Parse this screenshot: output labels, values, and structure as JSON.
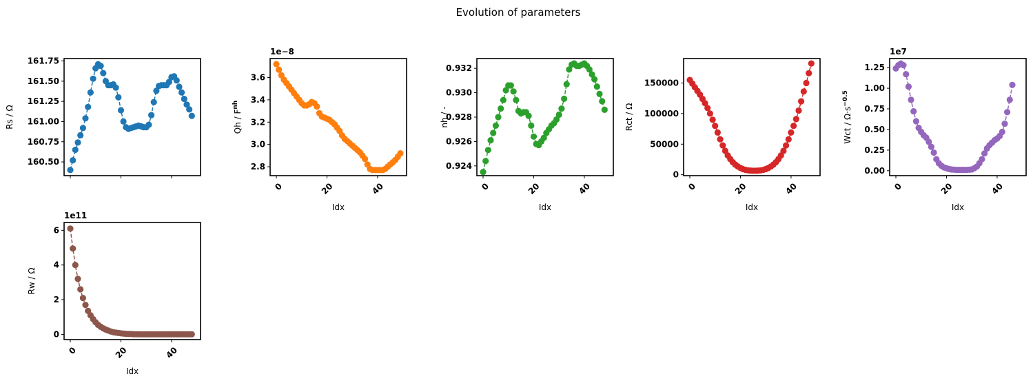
{
  "figure": {
    "title": "Evolution of parameters"
  },
  "chart_data": [
    {
      "type": "line",
      "marker": "circle",
      "line_style": "dashed",
      "color": "#1f77b4",
      "xlabel": "",
      "ylabel": "Rs / Ω",
      "xlim": [
        -2.45,
        51.45
      ],
      "ylim": [
        160.33,
        161.78
      ],
      "xticks": [
        0,
        20,
        40
      ],
      "xtick_labels": [
        "",
        "",
        ""
      ],
      "yticks": [
        160.5,
        160.75,
        161.0,
        161.25,
        161.5,
        161.75
      ],
      "ytick_labels": [
        "160.50",
        "160.75",
        "161.00",
        "161.25",
        "161.50",
        "161.75"
      ],
      "offset_text": "",
      "series": [
        {
          "values": [
            160.4,
            160.52,
            160.65,
            160.74,
            160.83,
            160.92,
            161.04,
            161.18,
            161.36,
            161.53,
            161.66,
            161.71,
            161.69,
            161.6,
            161.5,
            161.45,
            161.45,
            161.46,
            161.42,
            161.3,
            161.14,
            161.0,
            160.93,
            160.91,
            160.92,
            160.93,
            160.94,
            160.95,
            160.94,
            160.93,
            160.93,
            160.96,
            161.08,
            161.24,
            161.38,
            161.44,
            161.45,
            161.45,
            161.45,
            161.49,
            161.55,
            161.56,
            161.51,
            161.43,
            161.36,
            161.28,
            161.21,
            161.15,
            161.07
          ]
        }
      ]
    },
    {
      "type": "line",
      "marker": "circle",
      "line_style": "dashed",
      "color": "#ff7f0e",
      "xlabel": "Idx",
      "ylabel": "Qh / F^nh",
      "xlim": [
        -2.45,
        51.45
      ],
      "ylim": [
        2.72,
        3.77
      ],
      "xticks": [
        0,
        20,
        40
      ],
      "xtick_labels": [
        "0",
        "20",
        "40"
      ],
      "yticks": [
        2.8,
        3.0,
        3.2,
        3.4,
        3.6
      ],
      "ytick_labels": [
        "2.8",
        "3.0",
        "3.2",
        "3.4",
        "3.6"
      ],
      "offset_text": "1e−8",
      "series": [
        {
          "values": [
            3.72,
            3.67,
            3.62,
            3.58,
            3.55,
            3.52,
            3.49,
            3.46,
            3.43,
            3.4,
            3.37,
            3.35,
            3.35,
            3.36,
            3.38,
            3.37,
            3.34,
            3.28,
            3.25,
            3.24,
            3.23,
            3.22,
            3.2,
            3.18,
            3.15,
            3.12,
            3.08,
            3.05,
            3.03,
            3.01,
            2.99,
            2.97,
            2.95,
            2.93,
            2.9,
            2.87,
            2.82,
            2.78,
            2.77,
            2.77,
            2.77,
            2.77,
            2.77,
            2.78,
            2.8,
            2.82,
            2.84,
            2.86,
            2.89,
            2.92
          ]
        }
      ]
    },
    {
      "type": "line",
      "marker": "circle",
      "line_style": "dashed",
      "color": "#2ca02c",
      "xlabel": "Idx",
      "ylabel": "nh / -",
      "xlim": [
        -2.45,
        51.45
      ],
      "ylim": [
        0.9232,
        0.9328
      ],
      "xticks": [
        0,
        20,
        40
      ],
      "xtick_labels": [
        "0",
        "20",
        "40"
      ],
      "yticks": [
        0.924,
        0.926,
        0.928,
        0.93,
        0.932
      ],
      "ytick_labels": [
        "0.924",
        "0.926",
        "0.928",
        "0.930",
        "0.932"
      ],
      "offset_text": "",
      "series": [
        {
          "values": [
            0.9235,
            0.9244,
            0.9253,
            0.9261,
            0.9267,
            0.9273,
            0.928,
            0.9287,
            0.9294,
            0.9302,
            0.9306,
            0.9306,
            0.9301,
            0.9294,
            0.9285,
            0.9283,
            0.9284,
            0.9284,
            0.9281,
            0.9273,
            0.9264,
            0.9258,
            0.9257,
            0.926,
            0.9263,
            0.9267,
            0.927,
            0.9273,
            0.9275,
            0.9278,
            0.9282,
            0.9287,
            0.9295,
            0.9307,
            0.9319,
            0.9323,
            0.9324,
            0.9322,
            0.9322,
            0.9323,
            0.9324,
            0.9322,
            0.9319,
            0.9315,
            0.9311,
            0.9305,
            0.9299,
            0.9293,
            0.9286
          ]
        }
      ]
    },
    {
      "type": "line",
      "marker": "circle",
      "line_style": "dashed",
      "color": "#d62728",
      "xlabel": "Idx",
      "ylabel": "Rct / Ω",
      "xlim": [
        -2.45,
        51.45
      ],
      "ylim": [
        -1500,
        190000
      ],
      "xticks": [
        0,
        20,
        40
      ],
      "xtick_labels": [
        "0",
        "20",
        "40"
      ],
      "yticks": [
        0,
        50000,
        100000,
        150000
      ],
      "ytick_labels": [
        "0",
        "50000",
        "100000",
        "150000"
      ],
      "offset_text": "",
      "series": [
        {
          "values": [
            155000,
            149000,
            143000,
            137000,
            131000,
            124000,
            117000,
            109000,
            100000,
            90000,
            80000,
            69000,
            58000,
            48000,
            39000,
            31500,
            25500,
            20500,
            16500,
            13500,
            11000,
            9200,
            8000,
            7200,
            6800,
            6600,
            6600,
            6800,
            7200,
            8000,
            9200,
            11000,
            13500,
            16500,
            20500,
            25500,
            31500,
            39000,
            48000,
            58000,
            69000,
            80000,
            91000,
            105000,
            120000,
            136000,
            150000,
            166000,
            182000
          ]
        }
      ]
    },
    {
      "type": "line",
      "marker": "circle",
      "line_style": "dashed",
      "color": "#9467bd",
      "xlabel": "Idx",
      "ylabel": "Wct / Ω·s^−0.5",
      "xlim": [
        -2.45,
        51.45
      ],
      "ylim": [
        -0.06,
        1.36
      ],
      "xticks": [
        0,
        20,
        40
      ],
      "xtick_labels": [
        "0",
        "20",
        "40"
      ],
      "yticks": [
        0,
        0.25,
        0.5,
        0.75,
        1.0,
        1.25
      ],
      "ytick_labels": [
        "0.00",
        "0.25",
        "0.50",
        "0.75",
        "1.00",
        "1.25"
      ],
      "offset_text": "1e7",
      "series": [
        {
          "values": [
            1.24,
            1.28,
            1.3,
            1.28,
            1.17,
            1.02,
            0.86,
            0.72,
            0.6,
            0.52,
            0.47,
            0.43,
            0.4,
            0.35,
            0.29,
            0.22,
            0.14,
            0.09,
            0.06,
            0.04,
            0.03,
            0.02,
            0.015,
            0.012,
            0.01,
            0.01,
            0.01,
            0.01,
            0.01,
            0.012,
            0.015,
            0.03,
            0.05,
            0.09,
            0.14,
            0.21,
            0.27,
            0.31,
            0.34,
            0.37,
            0.39,
            0.42,
            0.47,
            0.57,
            0.71,
            0.86,
            1.04
          ]
        }
      ]
    },
    {
      "type": "line",
      "marker": "circle",
      "line_style": "dashed",
      "color": "#8c564b",
      "xlabel": "Idx",
      "ylabel": "Rw / Ω",
      "xlim": [
        -2.45,
        51.45
      ],
      "ylim": [
        -0.3,
        6.45
      ],
      "xticks": [
        0,
        20,
        40
      ],
      "xtick_labels": [
        "0",
        "20",
        "40"
      ],
      "yticks": [
        0,
        2,
        4,
        6
      ],
      "ytick_labels": [
        "0",
        "2",
        "4",
        "6"
      ],
      "offset_text": "1e11",
      "series": [
        {
          "values": [
            6.1,
            4.95,
            4.0,
            3.2,
            2.6,
            2.1,
            1.7,
            1.35,
            1.1,
            0.88,
            0.7,
            0.55,
            0.44,
            0.35,
            0.28,
            0.22,
            0.17,
            0.13,
            0.1,
            0.08,
            0.06,
            0.045,
            0.035,
            0.025,
            0.02,
            0.015,
            0.01,
            0.01,
            0.005,
            0.005,
            0.005,
            0.005,
            0.005,
            0.005,
            0.005,
            0.005,
            0.005,
            0.005,
            0.005,
            0.005,
            0.005,
            0.005,
            0.005,
            0.005,
            0.005,
            0.005,
            0.005,
            0.005,
            0.005
          ]
        }
      ]
    }
  ]
}
